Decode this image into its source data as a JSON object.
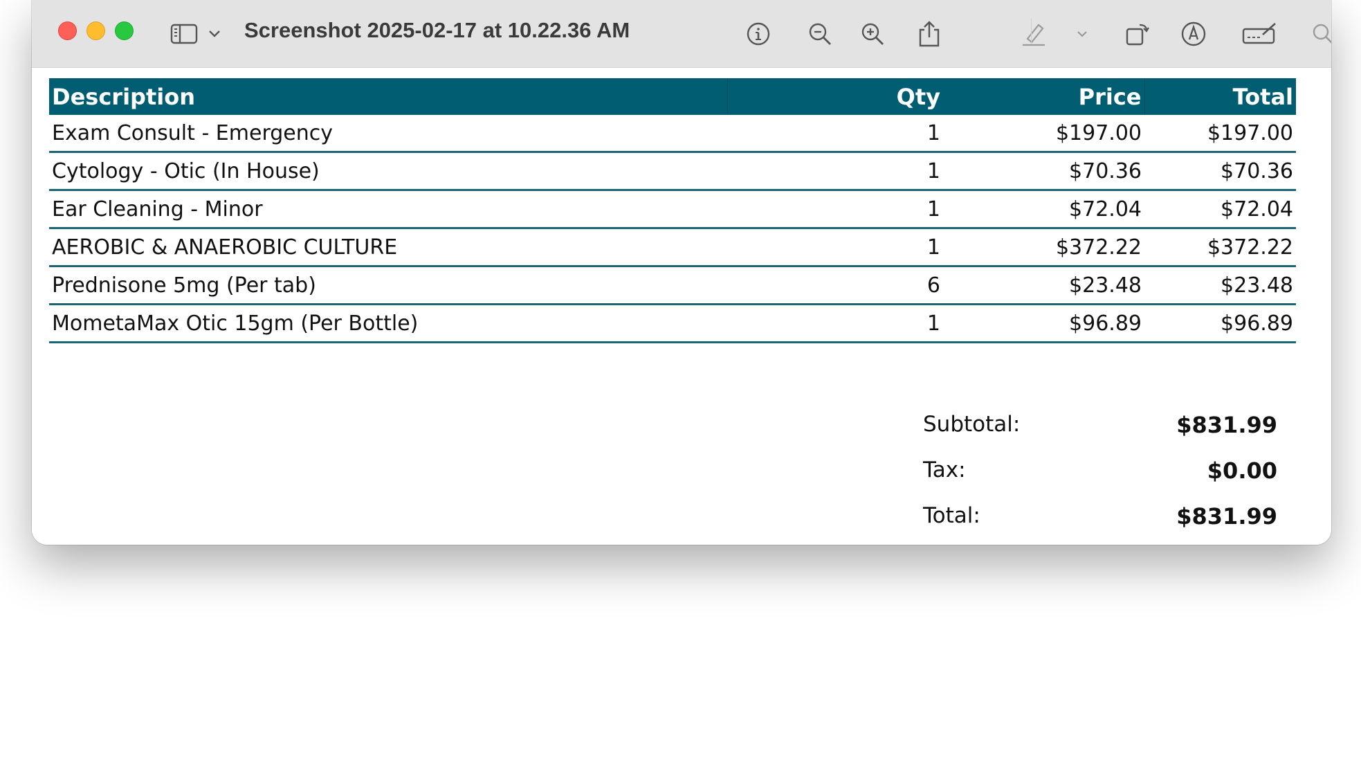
{
  "window": {
    "title": "Screenshot 2025-02-17 at 10.22.36 AM",
    "icons": [
      "sidebar-icon",
      "chevron-down-icon",
      "info-icon",
      "zoom-out-icon",
      "zoom-in-icon",
      "share-icon",
      "highlight-pen-icon",
      "chevron-down-icon",
      "rotate-icon",
      "markup-icon",
      "signature-icon",
      "search-icon"
    ]
  },
  "table": {
    "headers": {
      "description": "Description",
      "qty": "Qty",
      "price": "Price",
      "total": "Total"
    },
    "rows": [
      {
        "description": "Exam Consult - Emergency",
        "qty": "1",
        "price": "$197.00",
        "total": "$197.00"
      },
      {
        "description": "Cytology - Otic (In House)",
        "qty": "1",
        "price": "$70.36",
        "total": "$70.36"
      },
      {
        "description": "Ear Cleaning - Minor",
        "qty": "1",
        "price": "$72.04",
        "total": "$72.04"
      },
      {
        "description": "AEROBIC & ANAEROBIC CULTURE",
        "qty": "1",
        "price": "$372.22",
        "total": "$372.22"
      },
      {
        "description": "Prednisone 5mg (Per tab)",
        "qty": "6",
        "price": "$23.48",
        "total": "$23.48"
      },
      {
        "description": "MometaMax Otic 15gm (Per Bottle)",
        "qty": "1",
        "price": "$96.89",
        "total": "$96.89"
      }
    ]
  },
  "totals": {
    "subtotal_label": "Subtotal:",
    "subtotal_value": "$831.99",
    "tax_label": "Tax:",
    "tax_value": "$0.00",
    "total_label": "Total:",
    "total_value": "$831.99"
  },
  "colors": {
    "header_bg": "#015e72",
    "row_rule": "#1a6677",
    "titlebar": "#e3e3e3"
  }
}
